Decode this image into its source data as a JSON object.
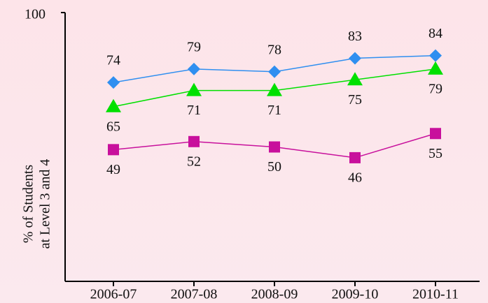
{
  "chart_data": {
    "type": "line",
    "ylabel": [
      "% of Students",
      "at Level 3 and 4"
    ],
    "categories": [
      "2006-07",
      "2007-08",
      "2008-09",
      "2009-10",
      "2010-11"
    ],
    "series": [
      {
        "color": "#2f8ff0",
        "marker": "diamond",
        "label_position": "above",
        "values": [
          74,
          79,
          78,
          83,
          84
        ]
      },
      {
        "color": "#00e000",
        "marker": "triangle",
        "label_position": "below",
        "values": [
          65,
          71,
          71,
          75,
          79
        ]
      },
      {
        "color": "#c8109c",
        "marker": "square",
        "label_position": "below",
        "values": [
          49,
          52,
          50,
          46,
          55
        ]
      }
    ],
    "ylim": [
      0,
      100
    ],
    "yticks": [
      100
    ]
  }
}
